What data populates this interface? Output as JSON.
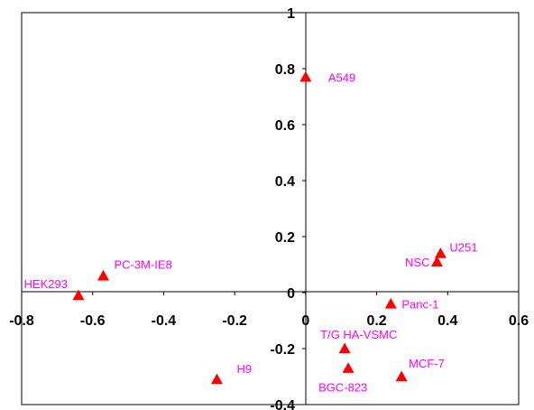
{
  "chart_data": {
    "type": "scatter",
    "title": "",
    "xlabel": "",
    "ylabel": "",
    "xlim": [
      -0.8,
      0.6
    ],
    "ylim": [
      -0.4,
      1
    ],
    "x_ticks": [
      "-0.8",
      "-0.6",
      "-0.4",
      "-0.2",
      "0",
      "0.2",
      "0.4",
      "0.6"
    ],
    "y_ticks": [
      "-0.4",
      "-0.2",
      "0",
      "0.2",
      "0.4",
      "0.6",
      "0.8",
      "1"
    ],
    "grid": false,
    "legend": "none",
    "marker": "triangle",
    "marker_color": "#ff0000",
    "label_color": "#ff00ff",
    "points": [
      {
        "label": "A549",
        "x": 0.0,
        "y": 0.77
      },
      {
        "label": "U251",
        "x": 0.38,
        "y": 0.14
      },
      {
        "label": "NSC",
        "x": 0.37,
        "y": 0.11
      },
      {
        "label": "HEK293",
        "x": -0.64,
        "y": -0.01
      },
      {
        "label": "PC-3M-IE8",
        "x": -0.57,
        "y": 0.06
      },
      {
        "label": "Panc-1",
        "x": 0.24,
        "y": -0.04
      },
      {
        "label": "T/G HA-VSMC",
        "x": 0.11,
        "y": -0.2
      },
      {
        "label": "H9",
        "x": -0.25,
        "y": -0.31
      },
      {
        "label": "BGC-823",
        "x": 0.12,
        "y": -0.27
      },
      {
        "label": "MCF-7",
        "x": 0.27,
        "y": -0.3
      }
    ]
  }
}
